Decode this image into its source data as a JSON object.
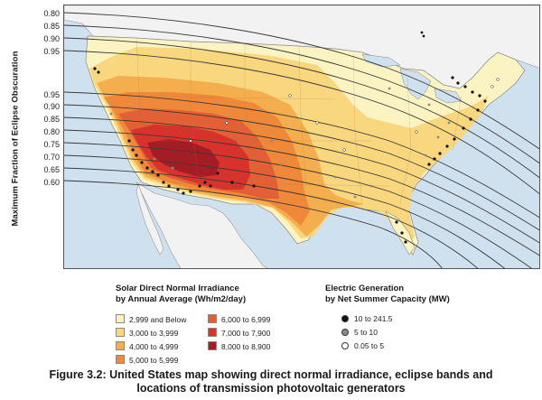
{
  "axis": {
    "title": "Maximum Fraction of Eclipse Obscuration",
    "ticks_top": [
      "0.80",
      "0.85",
      "0.90",
      "0.95"
    ],
    "ticks_bottom": [
      "0.95",
      "0.90",
      "0.85",
      "0.80",
      "0.75",
      "0.70",
      "0.65",
      "0.60"
    ]
  },
  "legend_irradiance": {
    "title_line1": "Solar Direct Normal Irradiance",
    "title_line2": "by Annual Average (Wh/m2/day)",
    "items": [
      {
        "label": "2,999 and Below",
        "color": "#fbf3c2"
      },
      {
        "label": "3,000 to 3,999",
        "color": "#f8d77e"
      },
      {
        "label": "4,000 to 4,999",
        "color": "#f5ae4d"
      },
      {
        "label": "5,000 to 5,999",
        "color": "#f0883a"
      },
      {
        "label": "6,000 to 6,999",
        "color": "#e35f35"
      },
      {
        "label": "7,000 to 7,900",
        "color": "#d8322c"
      },
      {
        "label": "8,000 to 8,900",
        "color": "#a51d24"
      }
    ]
  },
  "legend_generation": {
    "title_line1": "Electric Generation",
    "title_line2": "by Net Summer Capacity (MW)",
    "items": [
      {
        "label": "10 to 241.5",
        "fill": "#111111"
      },
      {
        "label": "5 to 10",
        "fill": "#8a8a8a"
      },
      {
        "label": "0.05 to 5",
        "fill": "#ffffff"
      }
    ]
  },
  "caption": {
    "line1": "Figure 3.2: United States map showing direct normal irradiance, eclipse bands and",
    "line2": "locations of transmission photovoltaic generators"
  },
  "colors": {
    "water": "#cfe0ee",
    "land_other": "#f2f2f2",
    "eclipse_line": "#3a3a3a"
  }
}
